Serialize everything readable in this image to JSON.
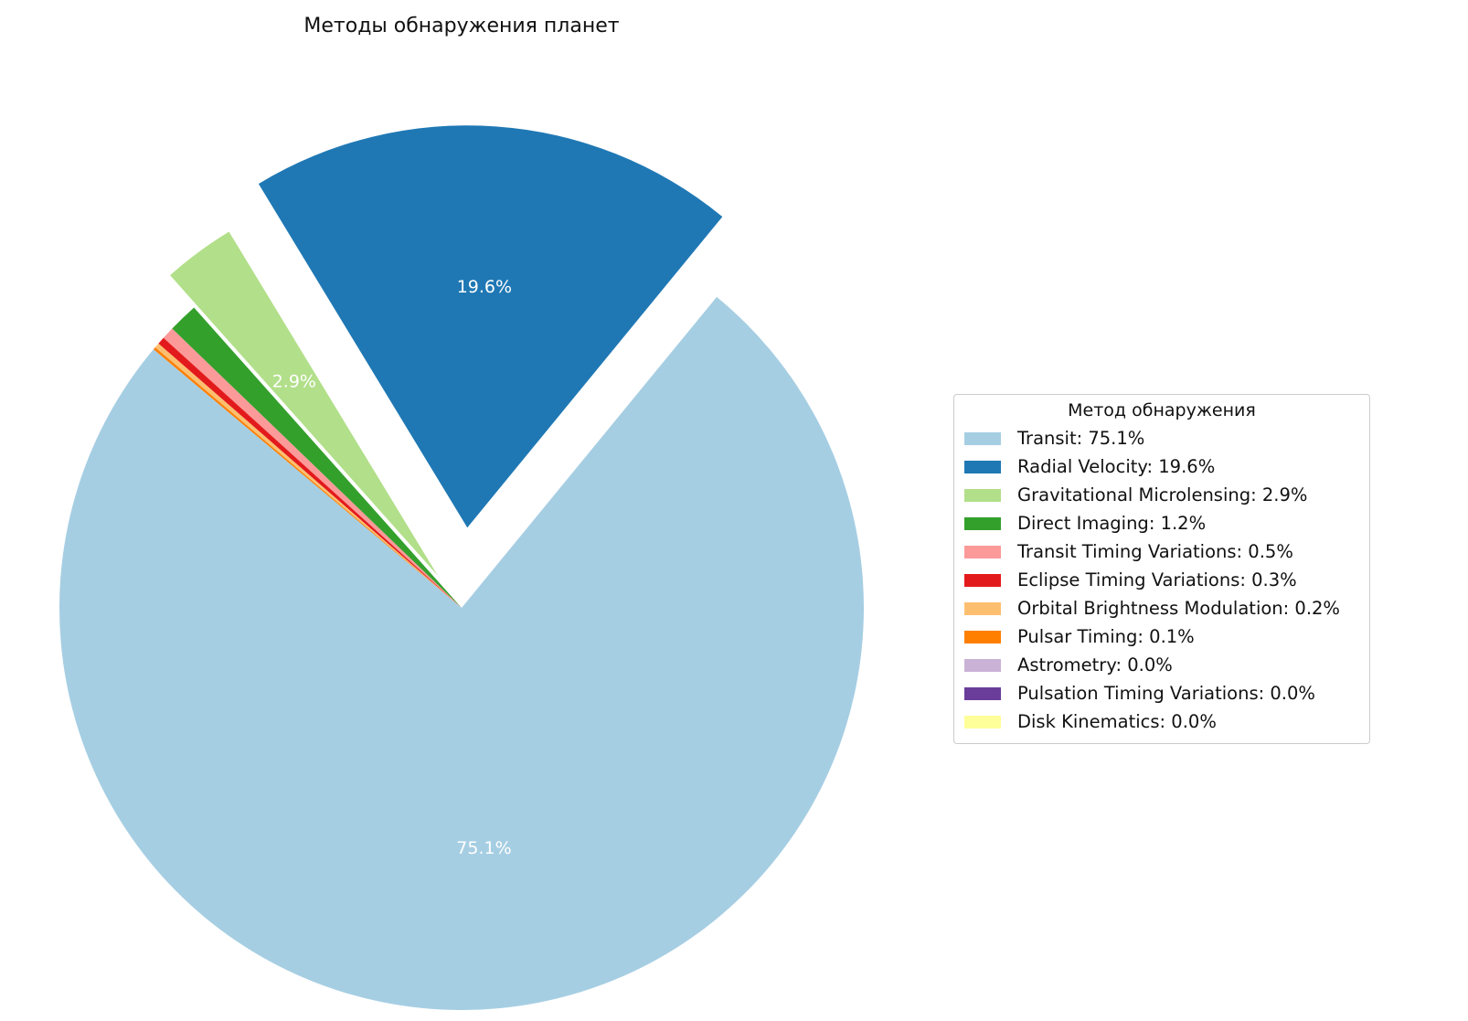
{
  "chart_data": {
    "type": "pie",
    "title": "Методы обнаружения планет",
    "legend_title": "Метод обнаружения",
    "legend_position": "right",
    "slices": [
      {
        "name": "Transit",
        "value": 75.1,
        "color": "#a6cee3",
        "legend": "Transit: 75.1%",
        "label": "75.1%"
      },
      {
        "name": "Radial Velocity",
        "value": 19.6,
        "color": "#1f78b4",
        "legend": "Radial Velocity: 19.6%",
        "label": "19.6%"
      },
      {
        "name": "Gravitational Microlensing",
        "value": 2.9,
        "color": "#b2df8a",
        "legend": "Gravitational Microlensing: 2.9%",
        "label": "2.9%"
      },
      {
        "name": "Direct Imaging",
        "value": 1.2,
        "color": "#33a02c",
        "legend": "Direct Imaging: 1.2%",
        "label": ""
      },
      {
        "name": "Transit Timing Variations",
        "value": 0.5,
        "color": "#fb9a99",
        "legend": "Transit Timing Variations: 0.5%",
        "label": ""
      },
      {
        "name": "Eclipse Timing Variations",
        "value": 0.3,
        "color": "#e31a1c",
        "legend": "Eclipse Timing Variations: 0.3%",
        "label": ""
      },
      {
        "name": "Orbital Brightness Modulation",
        "value": 0.2,
        "color": "#fdbf6f",
        "legend": "Orbital Brightness Modulation: 0.2%",
        "label": ""
      },
      {
        "name": "Pulsar Timing",
        "value": 0.1,
        "color": "#ff7f00",
        "legend": "Pulsar Timing: 0.1%",
        "label": ""
      },
      {
        "name": "Astrometry",
        "value": 0.0,
        "color": "#cab2d6",
        "legend": "Astrometry: 0.0%",
        "label": ""
      },
      {
        "name": "Pulsation Timing Variations",
        "value": 0.0,
        "color": "#6a3d9a",
        "legend": "Pulsation Timing Variations: 0.0%",
        "label": ""
      },
      {
        "name": "Disk Kinematics",
        "value": 0.0,
        "color": "#ffff99",
        "legend": "Disk Kinematics: 0.0%",
        "label": ""
      }
    ]
  }
}
